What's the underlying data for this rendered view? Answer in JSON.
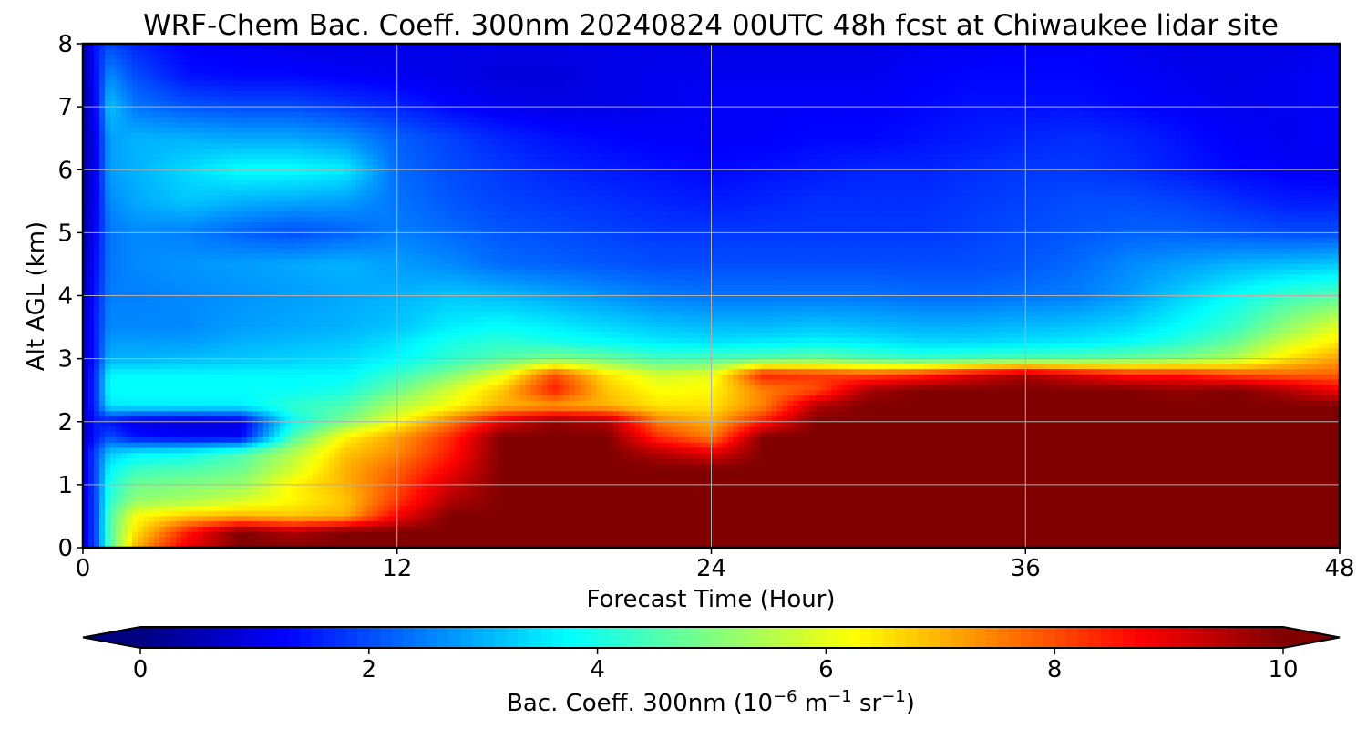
{
  "chart_data": {
    "type": "heatmap",
    "title": "WRF-Chem Bac. Coeff. 300nm  20240824 00UTC 48h fcst at Chiwaukee lidar site",
    "xlabel": "Forecast Time (Hour)",
    "ylabel": "Alt AGL (km)",
    "xlim": [
      0,
      48
    ],
    "ylim": [
      0,
      8
    ],
    "x_ticks": [
      "0",
      "12",
      "24",
      "36",
      "48"
    ],
    "x_tick_values": [
      0,
      12,
      24,
      36,
      48
    ],
    "y_ticks": [
      "0",
      "1",
      "2",
      "3",
      "4",
      "5",
      "6",
      "7",
      "8"
    ],
    "y_tick_values": [
      0,
      1,
      2,
      3,
      4,
      5,
      6,
      7,
      8
    ],
    "grid": true,
    "colormap": "jet",
    "colorbar": {
      "label_main": "Bac. Coeff. 300nm  (10",
      "label_exp1": "−6",
      "label_mid": " m",
      "label_exp2": "−1",
      "label_mid2": " sr",
      "label_exp3": "−1",
      "label_end": ")",
      "range": [
        0,
        10
      ],
      "extend": "both",
      "ticks": [
        "0",
        "2",
        "4",
        "6",
        "8",
        "10"
      ],
      "tick_values": [
        0,
        2,
        4,
        6,
        8,
        10
      ]
    },
    "x": [
      0,
      0.5,
      1,
      2,
      4,
      6,
      8,
      10,
      12,
      14,
      16,
      18,
      20,
      22,
      24,
      26,
      28,
      30,
      32,
      34,
      36,
      38,
      40,
      42,
      44,
      46,
      48
    ],
    "y": [
      0,
      0.25,
      0.5,
      0.75,
      1,
      1.25,
      1.5,
      1.75,
      2,
      2.25,
      2.5,
      2.75,
      3,
      3.25,
      3.5,
      4,
      4.5,
      5,
      5.5,
      6,
      6.5,
      7,
      7.5,
      8
    ],
    "z": [
      [
        1.0,
        2.0,
        4.5,
        7.0,
        9.0,
        10.0,
        10.0,
        10.0,
        10.0,
        10.0,
        10.0,
        10.0,
        10.0,
        10.0,
        10.0,
        10.0,
        10.0,
        10.0,
        10.0,
        10.0,
        10.0,
        10.0,
        10.0,
        10.0,
        10.0,
        10.0,
        10.0
      ],
      [
        1.0,
        2.0,
        4.5,
        6.5,
        8.5,
        10.0,
        9.5,
        10.0,
        10.0,
        10.0,
        10.0,
        10.0,
        10.0,
        10.0,
        10.0,
        10.0,
        10.0,
        10.0,
        10.0,
        10.0,
        10.0,
        10.0,
        10.0,
        10.0,
        10.0,
        10.0,
        10.0
      ],
      [
        1.0,
        2.0,
        4.5,
        6.2,
        6.8,
        7.0,
        6.8,
        7.0,
        8.8,
        10.0,
        10.0,
        10.0,
        10.0,
        10.0,
        10.0,
        10.0,
        10.0,
        10.0,
        10.0,
        10.0,
        10.0,
        10.0,
        10.0,
        10.0,
        10.0,
        10.0,
        10.0
      ],
      [
        1.0,
        2.0,
        4.2,
        5.2,
        5.4,
        5.8,
        6.3,
        6.8,
        8.2,
        9.5,
        10.0,
        10.0,
        10.0,
        10.0,
        10.0,
        10.0,
        10.0,
        10.0,
        10.0,
        10.0,
        10.0,
        10.0,
        10.0,
        10.0,
        10.0,
        10.0,
        10.0
      ],
      [
        1.0,
        2.0,
        4.0,
        4.8,
        5.0,
        5.2,
        6.3,
        7.0,
        8.0,
        9.2,
        10.0,
        10.0,
        10.0,
        10.0,
        10.0,
        10.0,
        10.0,
        10.0,
        10.0,
        10.0,
        10.0,
        10.0,
        10.0,
        10.0,
        10.0,
        10.0,
        10.0
      ],
      [
        1.0,
        2.0,
        3.7,
        4.3,
        4.5,
        4.8,
        5.8,
        7.0,
        7.8,
        8.8,
        10.0,
        10.0,
        10.0,
        10.0,
        10.0,
        10.0,
        10.0,
        10.0,
        10.0,
        10.0,
        10.0,
        10.0,
        10.0,
        10.0,
        10.0,
        10.0,
        10.0
      ],
      [
        1.0,
        2.0,
        3.2,
        3.6,
        3.8,
        4.5,
        5.5,
        6.8,
        7.4,
        8.5,
        10.0,
        10.0,
        10.0,
        9.5,
        9.0,
        10.0,
        10.0,
        10.0,
        10.0,
        10.0,
        10.0,
        10.0,
        10.0,
        10.0,
        10.0,
        10.0,
        10.0
      ],
      [
        0.6,
        1.5,
        2.0,
        1.4,
        1.2,
        1.2,
        4.5,
        6.3,
        7.2,
        8.3,
        10.0,
        10.0,
        10.0,
        8.3,
        7.5,
        10.0,
        10.0,
        10.0,
        10.0,
        10.0,
        10.0,
        10.0,
        10.0,
        10.0,
        10.0,
        10.0,
        10.0
      ],
      [
        0.6,
        1.5,
        1.4,
        1.0,
        0.9,
        1.0,
        3.8,
        5.0,
        6.2,
        7.5,
        9.0,
        9.8,
        9.5,
        7.5,
        7.0,
        8.5,
        10.0,
        10.0,
        10.0,
        10.0,
        10.0,
        10.0,
        10.0,
        10.0,
        10.0,
        10.0,
        10.0
      ],
      [
        0.8,
        1.8,
        3.5,
        3.6,
        3.6,
        3.6,
        4.2,
        4.5,
        5.5,
        6.2,
        7.0,
        7.2,
        7.0,
        6.5,
        6.5,
        7.5,
        9.5,
        10.0,
        10.0,
        10.0,
        10.0,
        10.0,
        10.0,
        10.0,
        10.0,
        10.0,
        10.0
      ],
      [
        0.8,
        1.8,
        3.8,
        3.8,
        3.8,
        3.8,
        3.8,
        4.0,
        4.8,
        5.8,
        6.8,
        8.5,
        6.8,
        6.2,
        6.3,
        7.5,
        8.0,
        9.6,
        10.0,
        10.0,
        10.0,
        10.0,
        10.0,
        9.8,
        10.0,
        9.5,
        8.8
      ],
      [
        0.8,
        1.8,
        3.7,
        3.7,
        3.7,
        3.7,
        3.7,
        3.7,
        4.3,
        5.0,
        6.0,
        8.0,
        6.5,
        5.8,
        6.0,
        8.5,
        8.2,
        8.0,
        8.3,
        9.0,
        9.6,
        9.0,
        8.5,
        8.5,
        8.0,
        7.8,
        7.8
      ],
      [
        0.7,
        1.6,
        3.0,
        3.0,
        3.1,
        3.2,
        3.3,
        3.4,
        3.7,
        4.2,
        4.6,
        5.0,
        4.8,
        4.4,
        4.5,
        4.6,
        4.8,
        4.5,
        4.3,
        4.4,
        4.5,
        4.6,
        4.8,
        5.0,
        5.5,
        6.5,
        7.2
      ],
      [
        0.7,
        1.6,
        2.8,
        2.8,
        2.8,
        3.0,
        3.1,
        3.2,
        3.5,
        4.0,
        4.2,
        4.0,
        3.8,
        3.6,
        3.5,
        3.6,
        3.7,
        3.6,
        3.4,
        3.4,
        3.5,
        3.6,
        3.8,
        4.2,
        4.8,
        5.8,
        6.5
      ],
      [
        0.7,
        1.6,
        2.6,
        2.6,
        2.6,
        2.8,
        2.9,
        3.0,
        3.2,
        3.6,
        3.8,
        3.6,
        3.4,
        3.2,
        3.1,
        3.1,
        3.2,
        3.1,
        3.0,
        3.0,
        3.1,
        3.2,
        3.4,
        3.8,
        4.3,
        5.2,
        6.0
      ],
      [
        0.6,
        1.5,
        2.5,
        2.5,
        2.6,
        2.7,
        2.8,
        2.9,
        3.0,
        3.2,
        3.1,
        2.9,
        2.7,
        2.5,
        2.4,
        2.4,
        2.4,
        2.4,
        2.3,
        2.3,
        2.4,
        2.5,
        2.8,
        3.3,
        3.8,
        4.3,
        4.6
      ],
      [
        0.5,
        1.4,
        2.4,
        2.6,
        2.7,
        2.8,
        2.9,
        3.0,
        2.8,
        2.6,
        2.3,
        2.2,
        2.1,
        2.0,
        2.0,
        2.0,
        2.0,
        2.0,
        2.0,
        2.0,
        2.1,
        2.3,
        2.6,
        2.8,
        3.0,
        3.1,
        3.2
      ],
      [
        0.4,
        1.3,
        2.4,
        2.6,
        2.5,
        2.2,
        2.0,
        2.2,
        2.5,
        2.3,
        2.1,
        2.0,
        1.9,
        1.8,
        1.8,
        1.8,
        1.8,
        1.8,
        1.8,
        1.9,
        2.0,
        2.1,
        2.2,
        2.2,
        2.1,
        2.0,
        2.0
      ],
      [
        0.4,
        1.2,
        2.6,
        2.9,
        3.2,
        3.0,
        2.9,
        2.8,
        2.4,
        2.1,
        1.9,
        1.8,
        1.7,
        1.6,
        1.5,
        1.6,
        1.7,
        1.7,
        1.7,
        1.8,
        1.9,
        2.0,
        2.0,
        1.9,
        1.7,
        1.5,
        1.5
      ],
      [
        0.4,
        1.2,
        2.8,
        3.0,
        3.4,
        3.8,
        3.8,
        3.6,
        2.3,
        2.0,
        1.8,
        1.6,
        1.5,
        1.4,
        1.3,
        1.4,
        1.5,
        1.6,
        1.6,
        1.7,
        1.8,
        1.8,
        1.7,
        1.5,
        1.3,
        1.2,
        1.1
      ],
      [
        0.4,
        1.2,
        2.8,
        3.0,
        3.0,
        2.9,
        2.9,
        2.7,
        2.2,
        1.9,
        1.6,
        1.4,
        1.3,
        1.2,
        1.2,
        1.2,
        1.3,
        1.3,
        1.4,
        1.5,
        1.6,
        1.7,
        1.6,
        1.4,
        1.2,
        1.1,
        1.2
      ],
      [
        0.4,
        1.3,
        3.2,
        2.4,
        2.1,
        2.0,
        2.0,
        1.8,
        1.6,
        1.3,
        1.1,
        1.0,
        1.0,
        1.1,
        1.2,
        1.2,
        1.2,
        1.2,
        1.3,
        1.4,
        1.4,
        1.4,
        1.3,
        1.2,
        1.1,
        1.1,
        1.2
      ],
      [
        0.4,
        1.4,
        2.6,
        2.0,
        1.4,
        1.3,
        1.3,
        1.2,
        1.1,
        1.0,
        0.9,
        0.9,
        1.0,
        1.1,
        1.1,
        1.1,
        1.1,
        1.1,
        1.2,
        1.3,
        1.3,
        1.3,
        1.2,
        1.1,
        1.0,
        1.1,
        1.2
      ],
      [
        0.4,
        1.5,
        2.0,
        1.6,
        1.2,
        1.1,
        1.0,
        1.0,
        1.0,
        1.0,
        1.0,
        1.0,
        1.0,
        1.0,
        1.0,
        1.0,
        1.0,
        1.0,
        1.1,
        1.1,
        1.2,
        1.2,
        1.1,
        1.0,
        1.0,
        1.0,
        1.1
      ]
    ]
  }
}
